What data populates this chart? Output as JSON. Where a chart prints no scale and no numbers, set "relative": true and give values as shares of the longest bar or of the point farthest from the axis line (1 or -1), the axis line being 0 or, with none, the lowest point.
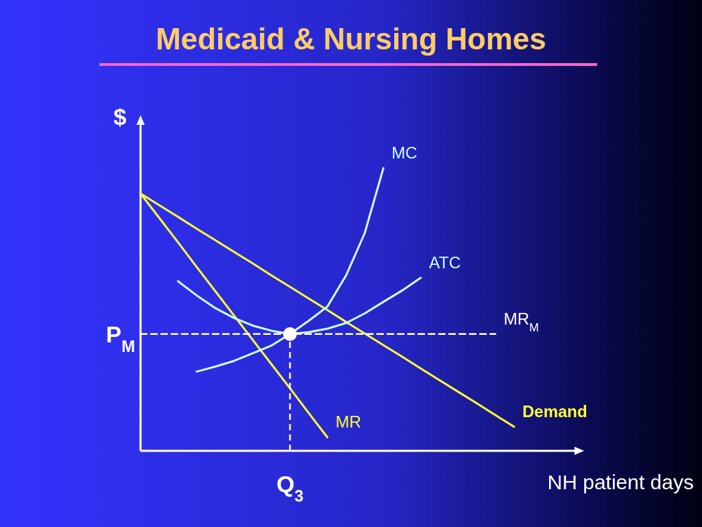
{
  "chart_data": {
    "type": "line",
    "title": "Medicaid & Nursing Homes",
    "xlabel": "NH patient days",
    "ylabel": "$",
    "relative": true,
    "categories": [
      null,
      null,
      null,
      null,
      null,
      null,
      null,
      null,
      null,
      null,
      null,
      null,
      null,
      null,
      null,
      null,
      null,
      null,
      null,
      null,
      null
    ],
    "series": [
      {
        "name": "Demand",
        "color": "#ffff33",
        "values": [
          0.91,
          0.869,
          0.828,
          0.786,
          0.745,
          0.704,
          0.663,
          0.621,
          0.58,
          0.539,
          0.498,
          0.456,
          0.415,
          0.374,
          0.333,
          0.291,
          0.25,
          0.209,
          0.168,
          0.126,
          0.085
        ]
      },
      {
        "name": "MR",
        "color": "#ffff33",
        "values": [
          0.91,
          0.824,
          0.738,
          0.651,
          0.565,
          0.479,
          0.393,
          0.307,
          0.221,
          0.134,
          0.048,
          null,
          null,
          null,
          null,
          null,
          null,
          null,
          null,
          null,
          null
        ]
      },
      {
        "name": "MC",
        "color": "#ccffff",
        "values": [
          null,
          null,
          null,
          0.28,
          0.298,
          0.318,
          0.345,
          0.372,
          0.413,
          0.46,
          0.51,
          0.62,
          0.77,
          1,
          null,
          null,
          null,
          null,
          null,
          null,
          null
        ]
      },
      {
        "name": "ATC",
        "color": "#ccffff",
        "values": [
          null,
          null,
          0.6,
          0.55,
          0.505,
          0.47,
          0.443,
          0.425,
          0.413,
          0.42,
          0.432,
          0.452,
          0.486,
          0.527,
          0.567,
          0.612,
          null,
          null,
          null,
          null,
          null
        ]
      },
      {
        "name": "MR$_{M}$",
        "color": "#ffffff",
        "line_style": "dashed",
        "values": [
          0.413,
          0.413,
          0.413,
          0.413,
          0.413,
          0.413,
          0.413,
          0.413,
          0.413,
          0.413,
          0.413,
          0.413,
          0.413,
          0.413,
          0.413,
          0.413,
          0.413,
          0.413,
          0.413,
          0.413,
          null
        ]
      },
      {
        "marker": "circle",
        "color": "#ffffff",
        "values": [
          null,
          null,
          null,
          null,
          null,
          null,
          null,
          null,
          0.413,
          null,
          null,
          null,
          null,
          null,
          null,
          null,
          null,
          null,
          null,
          null,
          null
        ],
        "line_style": "dashed"
      }
    ],
    "annotations": [
      "P$_{M}$",
      "Q$_{3}$"
    ]
  }
}
